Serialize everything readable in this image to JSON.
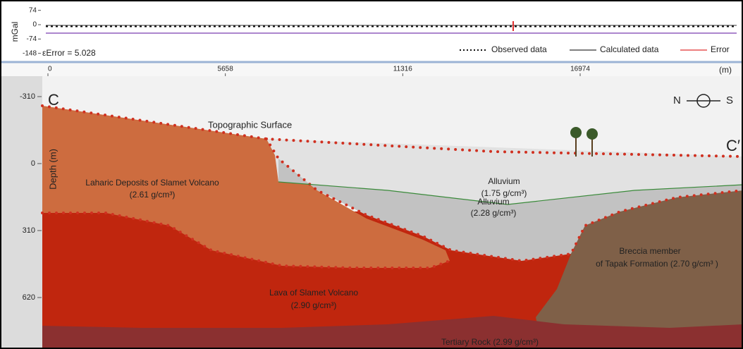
{
  "top_panel": {
    "y_axis_label": "mGal",
    "yticks": [
      74,
      0,
      -74,
      -148
    ],
    "error_label": "εError = 5.028",
    "legend": [
      "Observed data",
      "Calculated data",
      "Error"
    ]
  },
  "section": {
    "x_axis": {
      "ticks": [
        0,
        5658,
        11316,
        16974
      ],
      "unit": "(m)"
    },
    "y_axis": {
      "label": "Depth (m)",
      "ticks": [
        -310,
        0,
        310,
        620
      ]
    },
    "profile_start": "C",
    "profile_end": "C′",
    "compass": {
      "left": "N",
      "right": "S"
    },
    "topography_label": "Topographic Surface",
    "units": [
      {
        "name": "Laharic Deposits of  Slamet Volcano",
        "density": "(2.61 g/cm³)"
      },
      {
        "name": "Alluvium",
        "density": "(1.75 g/cm³)"
      },
      {
        "name": "Alluvium",
        "density": "(2.28 g/cm³)"
      },
      {
        "name": "Breccia member",
        "density": "of Tapak  Formation (2.70 g/cm³ )"
      },
      {
        "name": "Lava of Slamet Volcano",
        "density": "(2.90 g/cm³)"
      },
      {
        "name": "Tertiary Rock (2.99 g/cm³)"
      }
    ]
  }
}
